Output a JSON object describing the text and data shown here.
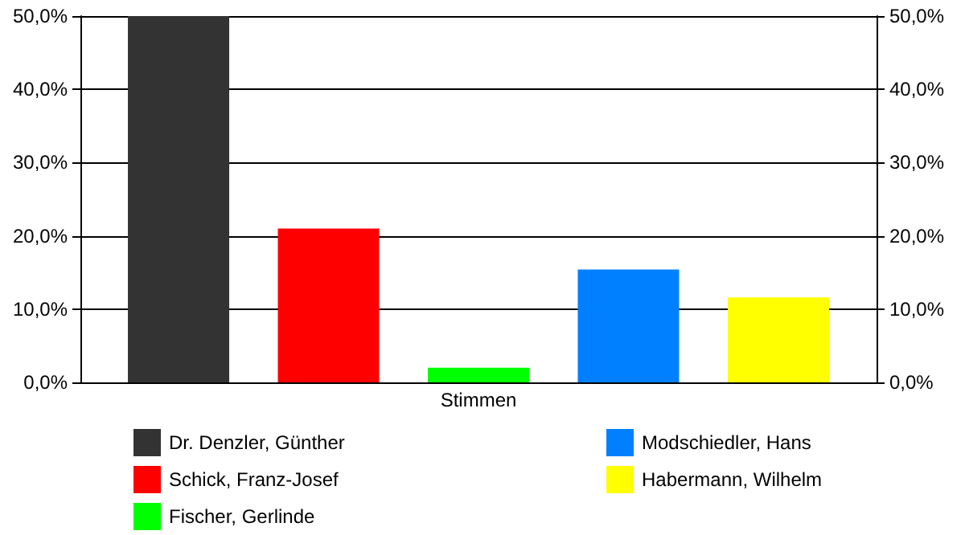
{
  "chart_data": {
    "type": "bar",
    "categories": [
      "Stimmen"
    ],
    "series": [
      {
        "name": "Dr. Denzler, Günther",
        "color": "#333333",
        "values": [
          50
        ]
      },
      {
        "name": "Schick, Franz-Josef",
        "color": "#ff0000",
        "values": [
          21
        ]
      },
      {
        "name": "Fischer, Gerlinde",
        "color": "#00ff00",
        "values": [
          2
        ]
      },
      {
        "name": "Modschiedler, Hans",
        "color": "#0080ff",
        "values": [
          15.4
        ]
      },
      {
        "name": "Habermann, Wilhelm",
        "color": "#ffff00",
        "values": [
          11.6
        ]
      }
    ],
    "ylim": [
      0,
      50
    ],
    "yticks": [
      {
        "value": 0,
        "label": "0,0%"
      },
      {
        "value": 10,
        "label": "10,0%"
      },
      {
        "value": 20,
        "label": "20,0%"
      },
      {
        "value": 30,
        "label": "30,0%"
      },
      {
        "value": 40,
        "label": "40,0%"
      },
      {
        "value": 50,
        "label": "50,0%"
      }
    ],
    "grid": "y",
    "legend": "bottom"
  }
}
